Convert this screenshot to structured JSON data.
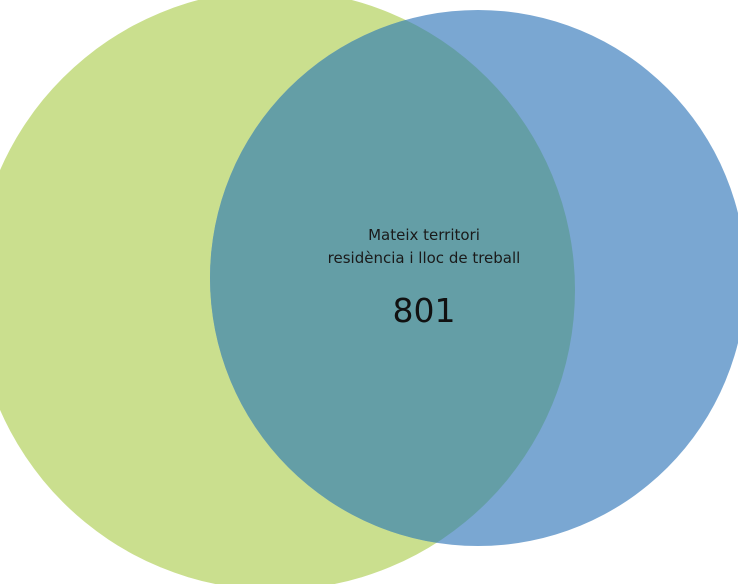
{
  "venn": {
    "colors": {
      "left_set": "#cadf8e",
      "right_set": "#7aa7d2",
      "overlap": "#649ea6"
    },
    "overlap": {
      "label_line1": "Mateix territori",
      "label_line2": "residència i lloc de treball",
      "value": "801"
    }
  }
}
